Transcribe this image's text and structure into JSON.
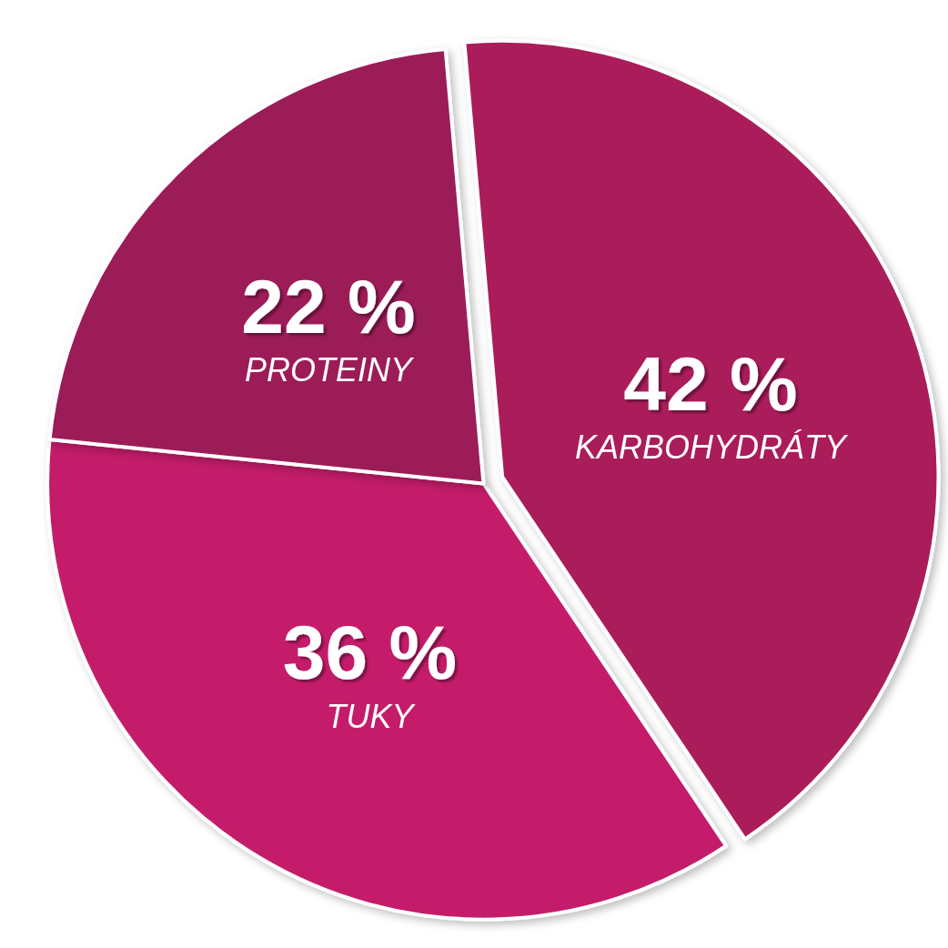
{
  "chart_data": {
    "type": "pie",
    "categories": [
      "KARBOHYDRÁTY",
      "TUKY",
      "PROTEINY"
    ],
    "values": [
      42,
      36,
      22
    ],
    "value_labels": [
      "42 %",
      "36 %",
      "22 %"
    ],
    "colors": [
      "#aa1a5a",
      "#c41a6a",
      "#9c1a58"
    ],
    "legend": false
  }
}
